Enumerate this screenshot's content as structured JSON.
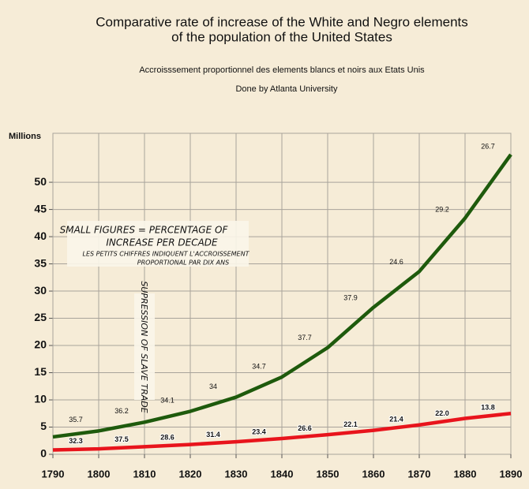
{
  "chart_data": {
    "type": "line",
    "title": [
      "Comparative rate of increase of the White and Negro elements",
      "of the population of the United States"
    ],
    "subtitle": "Accroisssement proportionnel des elements blancs et noirs aux Etats Unis",
    "credit": "Done by Atlanta University",
    "y_label": "Millions",
    "x": [
      1790,
      1800,
      1810,
      1820,
      1830,
      1840,
      1850,
      1860,
      1870,
      1880,
      1890
    ],
    "series": [
      {
        "color": "#1e5a0c",
        "values": [
          3.2,
          4.3,
          5.9,
          7.9,
          10.5,
          14.2,
          19.6,
          27.0,
          33.6,
          43.4,
          55.1
        ],
        "decade_increase": [
          35.7,
          36.2,
          34.1,
          34,
          34.7,
          37.7,
          37.9,
          24.6,
          29.2,
          26.7
        ]
      },
      {
        "color": "#e8141c",
        "values": [
          0.8,
          1.0,
          1.4,
          1.8,
          2.3,
          2.9,
          3.6,
          4.4,
          5.4,
          6.6,
          7.5
        ],
        "decade_increase": [
          32.3,
          37.5,
          28.6,
          31.4,
          23.4,
          26.6,
          22.1,
          21.4,
          {
            "value": 22,
            "label": "22.0"
          },
          13.8
        ]
      }
    ],
    "note": [
      "SMALL FIGURES = PERCENTAGE OF",
      "INCREASE PER DECADE"
    ],
    "note_fr": [
      "LES PETITS CHIFFRES INDIQUENT L'ACCROISSEMENT",
      "PROPORTIONAL PAR DIX ANS"
    ],
    "vertical_note": "SUPRESSION OF SLAVE TRADE",
    "xlim": [
      1790,
      1890
    ],
    "xticks": [
      1790,
      1800,
      1810,
      1820,
      1830,
      1840,
      1850,
      1860,
      1870,
      1880,
      1890
    ],
    "ylim": [
      0,
      59
    ],
    "yticks": [
      0,
      5,
      10,
      15,
      20,
      25,
      30,
      35,
      40,
      45,
      50
    ],
    "grid": true
  }
}
